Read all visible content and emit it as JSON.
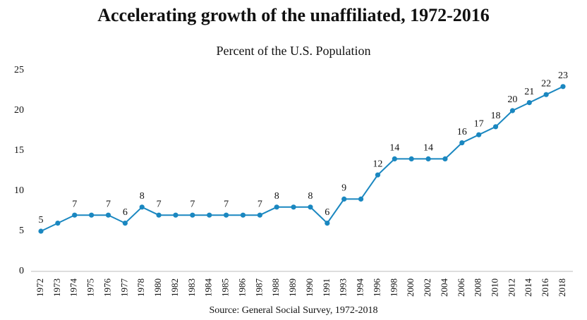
{
  "chart_data": {
    "type": "line",
    "title": "Accelerating growth of the unaffiliated, 1972-2016",
    "subtitle": "Percent of the U.S. Population",
    "source": "Source: General Social Survey, 1972-2018",
    "categories": [
      "1972",
      "1973",
      "1974",
      "1975",
      "1976",
      "1977",
      "1978",
      "1980",
      "1982",
      "1983",
      "1984",
      "1985",
      "1986",
      "1987",
      "1988",
      "1989",
      "1990",
      "1991",
      "1993",
      "1994",
      "1996",
      "1998",
      "2000",
      "2002",
      "2004",
      "2006",
      "2008",
      "2010",
      "2012",
      "2014",
      "2016",
      "2018"
    ],
    "values": [
      5,
      6,
      7,
      7,
      7,
      6,
      8,
      7,
      7,
      7,
      7,
      7,
      7,
      7,
      8,
      8,
      8,
      6,
      9,
      9,
      12,
      14,
      14,
      14,
      14,
      16,
      17,
      18,
      20,
      21,
      22,
      23
    ],
    "value_labels": [
      "5",
      null,
      "7",
      null,
      "7",
      "6",
      "8",
      "7",
      null,
      "7",
      null,
      "7",
      null,
      "7",
      "8",
      null,
      "8",
      "6",
      "9",
      null,
      "12",
      "14",
      null,
      "14",
      null,
      "16",
      "17",
      "18",
      "20",
      "21",
      "22",
      "23"
    ],
    "color": "#1a87c0",
    "ylim": [
      0,
      25
    ],
    "yticks": [
      0,
      5,
      10,
      15,
      20,
      25
    ],
    "grid": false
  }
}
